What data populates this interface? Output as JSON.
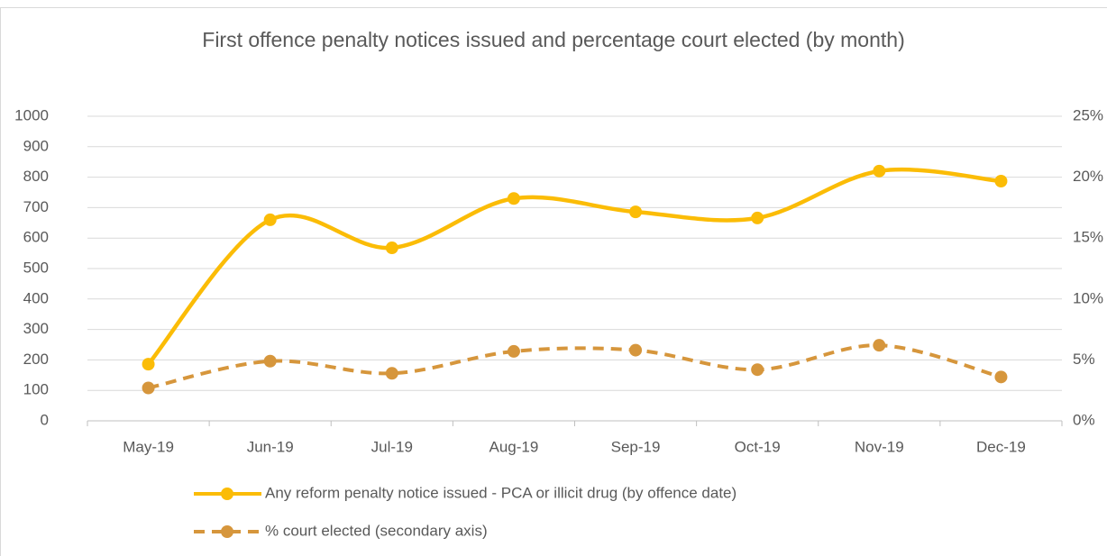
{
  "chart_data": {
    "type": "line",
    "title": "First offence penalty notices issued and percentage court elected (by month)",
    "categories": [
      "May-19",
      "Jun-19",
      "Jul-19",
      "Aug-19",
      "Sep-19",
      "Oct-19",
      "Nov-19",
      "Dec-19"
    ],
    "series": [
      {
        "name": "Any reform penalty notice issued - PCA or illicit drug (by offence date)",
        "color": "#fbbc06",
        "values": [
          186,
          660,
          568,
          730,
          686,
          666,
          820,
          787
        ]
      },
      {
        "name": "% court elected (secondary axis)",
        "color": "#d6963c",
        "axis": "y2",
        "dashed": true,
        "values": [
          2.7,
          4.9,
          3.9,
          5.7,
          5.8,
          4.2,
          6.2,
          3.6
        ]
      }
    ],
    "ylim": [
      0,
      1000
    ],
    "yticks": [
      0,
      100,
      200,
      300,
      400,
      500,
      600,
      700,
      800,
      900,
      1000
    ],
    "y2lim": [
      0,
      25
    ],
    "y2ticks": [
      {
        "value": 0,
        "label": "0%"
      },
      {
        "value": 5,
        "label": "5%"
      },
      {
        "value": 10,
        "label": "10%"
      },
      {
        "value": 15,
        "label": "15%"
      },
      {
        "value": 20,
        "label": "20%"
      },
      {
        "value": 25,
        "label": "25%"
      }
    ],
    "grid": true,
    "legend": "bottom",
    "smooth": true
  }
}
